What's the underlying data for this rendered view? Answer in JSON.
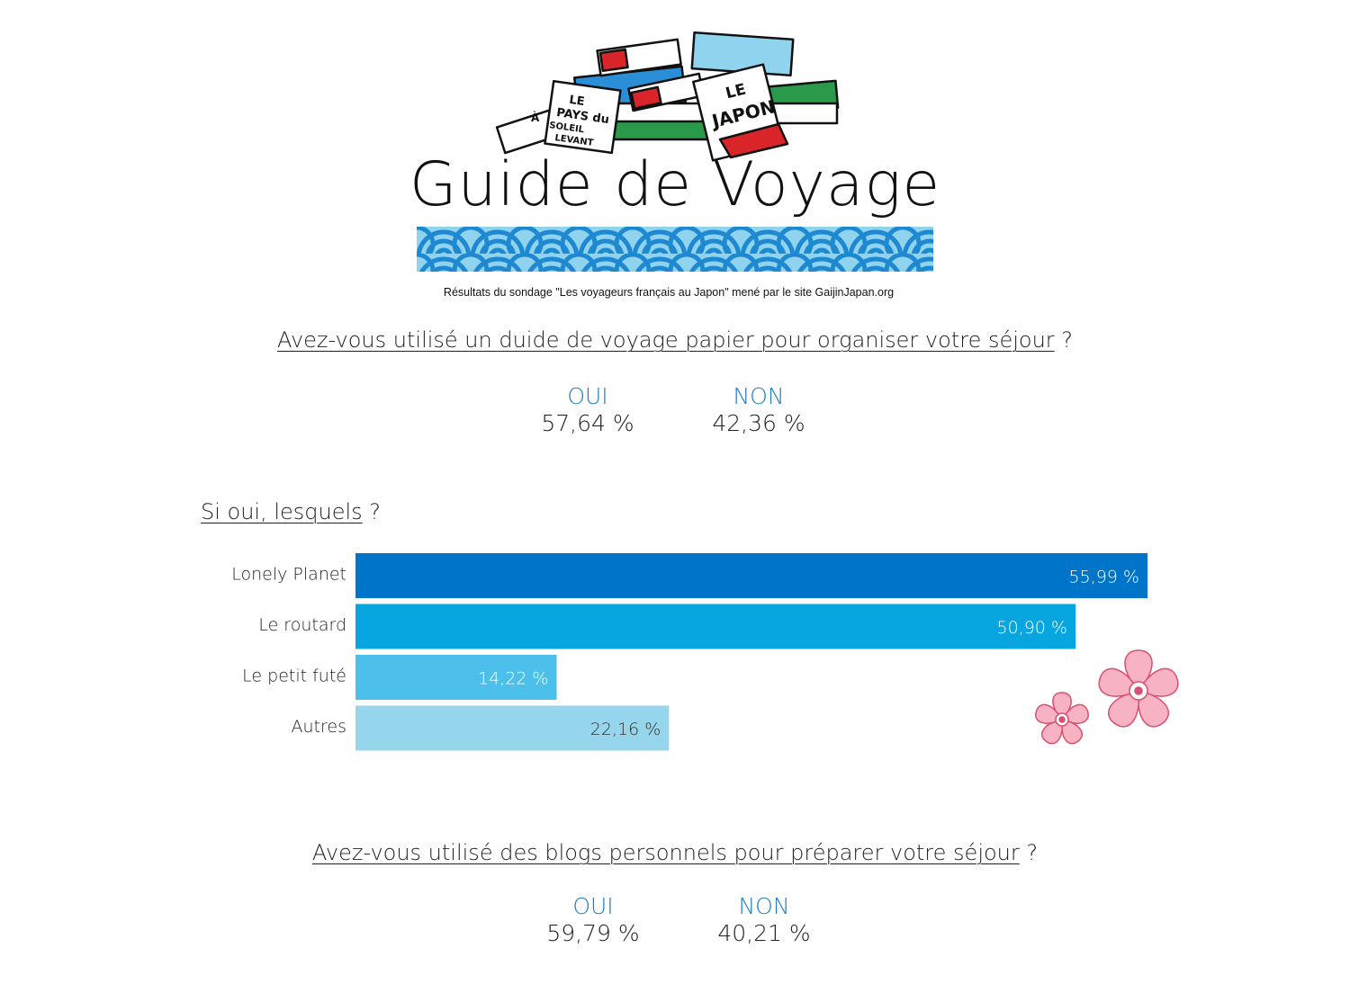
{
  "header": {
    "title": "Guide de Voyage",
    "subtitle": "Résultats du sondage \"Les voyageurs français au Japon\" mené par le site GaijinJapan.org",
    "logo_text": [
      "LE PAYS du SOLEIL LEVANT",
      "LE JAPON",
      "À"
    ]
  },
  "question1": {
    "text": "Avez-vous utilisé un duide de voyage papier pour organiser votre séjour",
    "suffix": " ?",
    "answers": [
      {
        "label": "OUI",
        "value": "57,64 %"
      },
      {
        "label": "NON",
        "value": "42,36 %"
      }
    ]
  },
  "question2": {
    "text": "Si oui, lesquels",
    "suffix": " ?"
  },
  "question3": {
    "text": "Avez-vous utilisé des blogs personnels pour préparer votre séjour",
    "suffix": " ?",
    "answers": [
      {
        "label": "OUI",
        "value": "59,79 %"
      },
      {
        "label": "NON",
        "value": "40,21 %"
      }
    ]
  },
  "colors": {
    "accent": "#1f7fc6",
    "bar1": "#0074c8",
    "bar2": "#08a6e0",
    "bar3": "#4cc0ea",
    "bar4": "#96d6ec",
    "wave_dark": "#1e88d0",
    "wave_light": "#8fd3ee",
    "flower": "#f4a7b9"
  },
  "chart_data": {
    "type": "bar",
    "orientation": "horizontal",
    "categories": [
      "Lonely Planet",
      "Le routard",
      "Le petit futé",
      "Autres"
    ],
    "values": [
      55.99,
      50.9,
      14.22,
      22.16
    ],
    "data_labels": [
      "55,99 %",
      "50,90 %",
      "14,22 %",
      "22,16 %"
    ],
    "xlim": [
      0,
      55.99
    ],
    "grid": false,
    "unit": "%"
  }
}
